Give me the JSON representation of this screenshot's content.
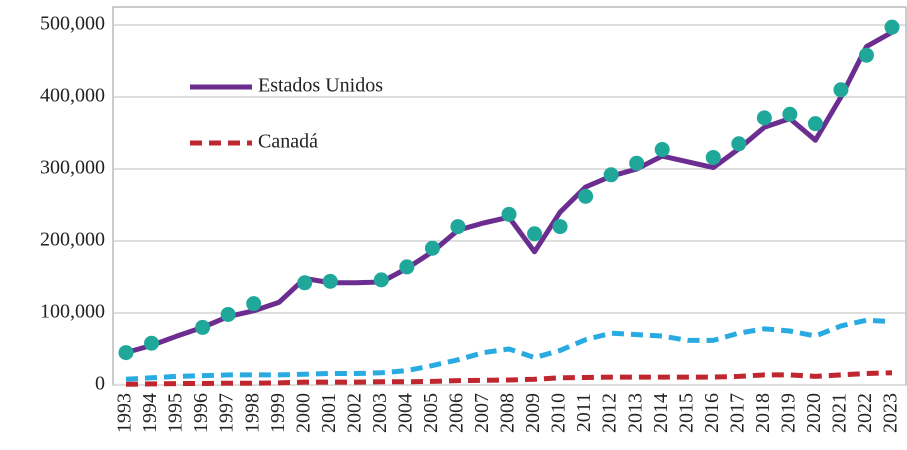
{
  "chart_data": {
    "type": "line",
    "categories": [
      "1993",
      "1994",
      "1995",
      "1996",
      "1997",
      "1998",
      "1999",
      "2000",
      "2001",
      "2002",
      "2003",
      "2004",
      "2005",
      "2006",
      "2007",
      "2008",
      "2009",
      "2010",
      "2011",
      "2012",
      "2013",
      "2014",
      "2015",
      "2016",
      "2017",
      "2018",
      "2019",
      "2020",
      "2021",
      "2022",
      "2023"
    ],
    "series": [
      {
        "name": "Estados Unidos",
        "color": "#6b2d8f",
        "style": "solid",
        "values": [
          45000,
          55000,
          68000,
          80000,
          95000,
          103000,
          115000,
          148000,
          142000,
          142000,
          143000,
          162000,
          185000,
          215000,
          225000,
          233000,
          185000,
          240000,
          275000,
          290000,
          300000,
          318000,
          310000,
          302000,
          328000,
          358000,
          370000,
          340000,
          400000,
          470000,
          490000
        ]
      },
      {
        "name": "Canadá",
        "color": "#c0262e",
        "style": "dashed",
        "values": [
          1000,
          1500,
          2000,
          2000,
          2500,
          2500,
          3000,
          4000,
          4000,
          4000,
          4500,
          4500,
          5000,
          6000,
          6500,
          7000,
          8000,
          10000,
          10500,
          11000,
          11000,
          11000,
          11000,
          11000,
          12000,
          14000,
          14000,
          12000,
          14000,
          16000,
          17000
        ]
      },
      {
        "color": "#29abe2",
        "style": "dashed",
        "values": [
          8000,
          10000,
          12000,
          13000,
          14000,
          14000,
          14000,
          15000,
          16000,
          16000,
          17000,
          20000,
          27000,
          35000,
          45000,
          50000,
          38000,
          48000,
          63000,
          72000,
          70000,
          68000,
          62000,
          62000,
          72000,
          78000,
          75000,
          68000,
          82000,
          90000,
          88000
        ]
      },
      {
        "color": "#1fa89a",
        "style": "dots",
        "values": [
          45000,
          58000,
          null,
          80000,
          98000,
          113000,
          null,
          142000,
          144000,
          null,
          146000,
          164000,
          190000,
          220000,
          null,
          237000,
          210000,
          220000,
          262000,
          292000,
          308000,
          327000,
          null,
          316000,
          335000,
          371000,
          376000,
          363000,
          410000,
          458000,
          497000
        ]
      }
    ],
    "ylim": [
      0,
      525000
    ],
    "yticks": [
      0,
      {
        "value": 100000,
        "label": "100,000"
      },
      {
        "value": 200000,
        "label": "200,000"
      },
      {
        "value": 300000,
        "label": "300,000"
      },
      {
        "value": 400000,
        "label": "400,000"
      },
      {
        "value": 500000,
        "label": "500,000"
      }
    ],
    "grid": true,
    "legend": "upper left"
  }
}
